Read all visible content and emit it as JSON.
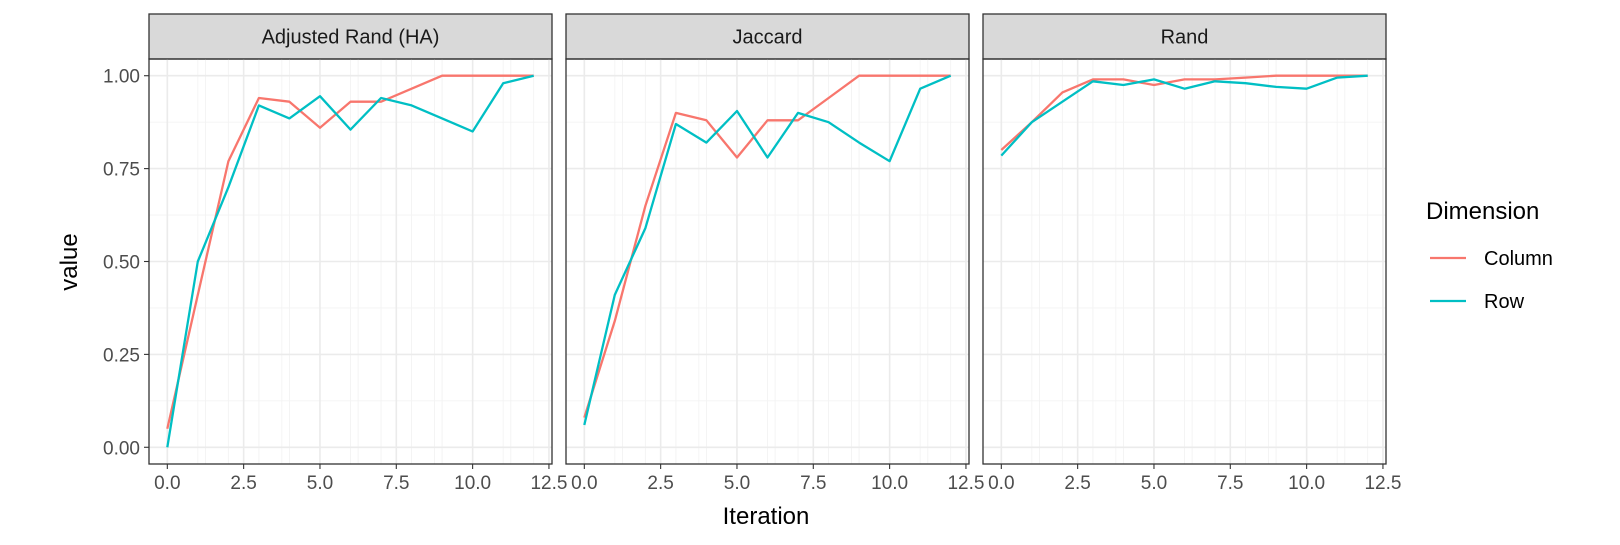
{
  "chart_data": {
    "type": "line",
    "xlabel": "Iteration",
    "ylabel": "value",
    "xlim": [
      -0.6,
      12.6
    ],
    "ylim": [
      -0.045,
      1.045
    ],
    "x_ticks": [
      "0.0",
      "2.5",
      "5.0",
      "7.5",
      "10.0",
      "12.5"
    ],
    "x_tick_values": [
      0,
      2.5,
      5,
      7.5,
      10,
      12.5
    ],
    "y_ticks": [
      "0.00",
      "0.25",
      "0.50",
      "0.75",
      "1.00"
    ],
    "y_tick_values": [
      0,
      0.25,
      0.5,
      0.75,
      1.0
    ],
    "grid": true,
    "legend": {
      "title": "Dimension",
      "position": "right",
      "entries": [
        {
          "name": "Column",
          "color": "#F8766D"
        },
        {
          "name": "Row",
          "color": "#00BFC4"
        }
      ]
    },
    "x": [
      0,
      1,
      2,
      3,
      4,
      5,
      6,
      7,
      8,
      9,
      10,
      11,
      12
    ],
    "panels": [
      {
        "title": "Adjusted Rand (HA)",
        "series": [
          {
            "name": "Column",
            "values": [
              0.05,
              0.41,
              0.77,
              0.94,
              0.93,
              0.86,
              0.93,
              0.93,
              0.965,
              1.0,
              1.0,
              1.0,
              1.0
            ]
          },
          {
            "name": "Row",
            "values": [
              0.0,
              0.5,
              0.7,
              0.92,
              0.885,
              0.945,
              0.855,
              0.94,
              0.92,
              0.885,
              0.85,
              0.98,
              1.0
            ]
          }
        ]
      },
      {
        "title": "Jaccard",
        "series": [
          {
            "name": "Column",
            "values": [
              0.08,
              0.34,
              0.65,
              0.9,
              0.88,
              0.78,
              0.88,
              0.88,
              0.94,
              1.0,
              1.0,
              1.0,
              1.0
            ]
          },
          {
            "name": "Row",
            "values": [
              0.06,
              0.41,
              0.59,
              0.87,
              0.82,
              0.905,
              0.78,
              0.9,
              0.875,
              0.82,
              0.77,
              0.965,
              1.0
            ]
          }
        ]
      },
      {
        "title": "Rand",
        "series": [
          {
            "name": "Column",
            "values": [
              0.8,
              0.875,
              0.955,
              0.99,
              0.99,
              0.975,
              0.99,
              0.99,
              0.995,
              1.0,
              1.0,
              1.0,
              1.0
            ]
          },
          {
            "name": "Row",
            "values": [
              0.785,
              0.875,
              0.93,
              0.985,
              0.975,
              0.99,
              0.965,
              0.985,
              0.98,
              0.97,
              0.965,
              0.995,
              1.0
            ]
          }
        ]
      }
    ]
  }
}
